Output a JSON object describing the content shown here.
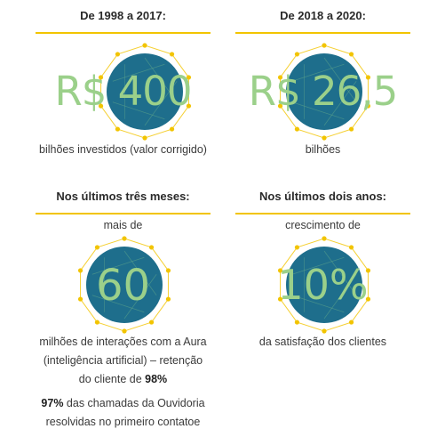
{
  "stats": [
    {
      "heading": "De 1998 a 2017:",
      "value": "R$ 400",
      "caption": "bilhões investidos (valor corrigido)"
    },
    {
      "heading": "De 2018 a 2020:",
      "value": "R$ 26,5",
      "caption": "bilhões"
    },
    {
      "heading": "Nos últimos três meses:",
      "prefix": "mais de",
      "value": "60",
      "caption_line1": "milhões de interações com a Aura",
      "caption_line2": "(inteligência artificial) – retenção",
      "caption_line3_text": "do cliente de ",
      "caption_line3_bold": "98%",
      "extra_bold": "97%",
      "extra_line1": " das chamadas da Ouvidoria",
      "extra_line2": "resolvidas no primeiro contatoe"
    },
    {
      "heading": "Nos últimos dois anos:",
      "prefix": "crescimento de",
      "value": "10%",
      "caption": "da satisfação dos clientes"
    }
  ],
  "colors": {
    "accent_yellow": "#f2c400",
    "circle_teal": "#1e6e8c",
    "value_green": "#9bd08a"
  }
}
